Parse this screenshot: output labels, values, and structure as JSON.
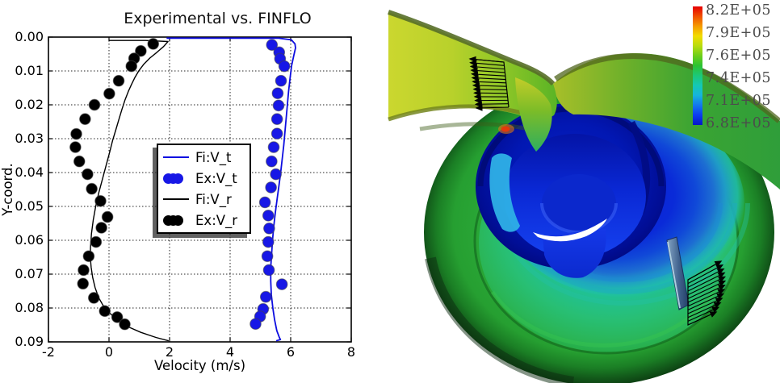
{
  "left_panel": {
    "title": "Experimental vs. FINFLO",
    "xlabel": "Velocity (m/s)",
    "ylabel": "Y-coord.",
    "x_tick_labels": [
      "-2",
      "0",
      "2",
      "4",
      "6",
      "8"
    ],
    "y_tick_labels": [
      "0.00",
      "0.01",
      "0.02",
      "0.03",
      "0.04",
      "0.05",
      "0.06",
      "0.07",
      "0.08",
      "0.09"
    ],
    "legend": {
      "entries": [
        {
          "label": "Fi:V_t",
          "marker": "line",
          "color": "#0d0de0"
        },
        {
          "label": "Ex:V_t",
          "marker": "dots",
          "color": "#1717e6"
        },
        {
          "label": "Fi:V_r",
          "marker": "line",
          "color": "#000000"
        },
        {
          "label": "Ex:V_r",
          "marker": "dots",
          "color": "#000000"
        }
      ]
    }
  },
  "chart_data": {
    "type": "line",
    "title": "Experimental vs. FINFLO",
    "xlabel": "Velocity (m/s)",
    "ylabel": "Y-coord.",
    "xlim": [
      -2,
      8
    ],
    "ylim": [
      0,
      0.09
    ],
    "y_axis_inverted": true,
    "grid": true,
    "legend_position": "center",
    "x_ticks": [
      -2,
      0,
      2,
      4,
      6,
      8
    ],
    "y_ticks": [
      0,
      0.01,
      0.02,
      0.03,
      0.04,
      0.05,
      0.06,
      0.07,
      0.08,
      0.09
    ],
    "series": [
      {
        "name": "Fi:V_t",
        "mode": "line",
        "color": "#0d0de0",
        "width": 1.8,
        "points": [
          [
            1.9,
            0.0003
          ],
          [
            5.6,
            0.0003
          ],
          [
            6.02,
            0.0008
          ],
          [
            6.14,
            0.002
          ],
          [
            6.16,
            0.0032
          ],
          [
            6.1,
            0.0055
          ],
          [
            6.03,
            0.0085
          ],
          [
            5.98,
            0.012
          ],
          [
            5.93,
            0.016
          ],
          [
            5.89,
            0.02
          ],
          [
            5.85,
            0.024
          ],
          [
            5.81,
            0.028
          ],
          [
            5.77,
            0.032
          ],
          [
            5.72,
            0.036
          ],
          [
            5.67,
            0.04
          ],
          [
            5.61,
            0.044
          ],
          [
            5.55,
            0.048
          ],
          [
            5.49,
            0.052
          ],
          [
            5.44,
            0.056
          ],
          [
            5.4,
            0.06
          ],
          [
            5.37,
            0.064
          ],
          [
            5.34,
            0.068
          ],
          [
            5.34,
            0.072
          ],
          [
            5.36,
            0.076
          ],
          [
            5.41,
            0.08
          ],
          [
            5.47,
            0.0835
          ],
          [
            5.54,
            0.0867
          ],
          [
            5.62,
            0.0886
          ],
          [
            5.66,
            0.0893
          ],
          [
            5.52,
            0.0897
          ]
        ]
      },
      {
        "name": "Ex:V_t",
        "mode": "scatter",
        "color": "#1717e6",
        "radius": 6.8,
        "points": [
          [
            5.38,
            0.0023
          ],
          [
            5.62,
            0.0045
          ],
          [
            5.65,
            0.0064
          ],
          [
            5.79,
            0.0086
          ],
          [
            5.68,
            0.0129
          ],
          [
            5.57,
            0.0166
          ],
          [
            5.6,
            0.0202
          ],
          [
            5.55,
            0.0242
          ],
          [
            5.55,
            0.0285
          ],
          [
            5.44,
            0.0325
          ],
          [
            5.37,
            0.0367
          ],
          [
            5.51,
            0.0405
          ],
          [
            5.35,
            0.0444
          ],
          [
            5.15,
            0.0488
          ],
          [
            5.26,
            0.0527
          ],
          [
            5.29,
            0.0565
          ],
          [
            5.26,
            0.0605
          ],
          [
            5.23,
            0.0647
          ],
          [
            5.28,
            0.0688
          ],
          [
            5.71,
            0.073
          ],
          [
            5.18,
            0.0767
          ],
          [
            5.09,
            0.0803
          ],
          [
            4.99,
            0.0825
          ],
          [
            4.84,
            0.0847
          ]
        ]
      },
      {
        "name": "Fi:V_r",
        "mode": "line",
        "color": "#000000",
        "width": 1.4,
        "points": [
          [
            0.0,
            0.001
          ],
          [
            1.2,
            0.001
          ],
          [
            1.95,
            0.0013
          ],
          [
            1.8,
            0.0028
          ],
          [
            1.58,
            0.0045
          ],
          [
            1.35,
            0.0062
          ],
          [
            1.15,
            0.008
          ],
          [
            0.98,
            0.01
          ],
          [
            0.85,
            0.012
          ],
          [
            0.74,
            0.014
          ],
          [
            0.64,
            0.016
          ],
          [
            0.53,
            0.0185
          ],
          [
            0.42,
            0.0215
          ],
          [
            0.32,
            0.0245
          ],
          [
            0.22,
            0.0275
          ],
          [
            0.12,
            0.0305
          ],
          [
            0.02,
            0.034
          ],
          [
            -0.1,
            0.038
          ],
          [
            -0.22,
            0.042
          ],
          [
            -0.34,
            0.046
          ],
          [
            -0.44,
            0.05
          ],
          [
            -0.52,
            0.054
          ],
          [
            -0.58,
            0.058
          ],
          [
            -0.61,
            0.062
          ],
          [
            -0.62,
            0.065
          ],
          [
            -0.59,
            0.068
          ],
          [
            -0.54,
            0.071
          ],
          [
            -0.46,
            0.074
          ],
          [
            -0.34,
            0.077
          ],
          [
            -0.18,
            0.0795
          ],
          [
            0.02,
            0.0815
          ],
          [
            0.28,
            0.0835
          ],
          [
            0.62,
            0.0855
          ],
          [
            1.05,
            0.0872
          ],
          [
            1.55,
            0.0887
          ],
          [
            1.97,
            0.0897
          ]
        ]
      },
      {
        "name": "Ex:V_r",
        "mode": "scatter",
        "color": "#000000",
        "radius": 6.8,
        "points": [
          [
            1.46,
            0.002
          ],
          [
            1.05,
            0.0041
          ],
          [
            0.83,
            0.0063
          ],
          [
            0.74,
            0.0086
          ],
          [
            0.32,
            0.0129
          ],
          [
            0.01,
            0.0167
          ],
          [
            -0.48,
            0.02
          ],
          [
            -0.79,
            0.0242
          ],
          [
            -1.08,
            0.0286
          ],
          [
            -1.11,
            0.0325
          ],
          [
            -0.98,
            0.0367
          ],
          [
            -0.71,
            0.0405
          ],
          [
            -0.57,
            0.0448
          ],
          [
            -0.28,
            0.0484
          ],
          [
            -0.05,
            0.0531
          ],
          [
            -0.25,
            0.0563
          ],
          [
            -0.43,
            0.0605
          ],
          [
            -0.67,
            0.0647
          ],
          [
            -0.84,
            0.0688
          ],
          [
            -0.86,
            0.0728
          ],
          [
            -0.5,
            0.077
          ],
          [
            -0.14,
            0.0809
          ],
          [
            0.27,
            0.0827
          ],
          [
            0.52,
            0.0848
          ]
        ]
      }
    ]
  },
  "right_panel": {
    "colorbar": {
      "tick_labels": [
        "8.2E+05",
        "7.9E+05",
        "7.6E+05",
        "7.4E+05",
        "7.1E+05",
        "6.8E+05"
      ],
      "label_color": "#4c4c4c",
      "colors_top_to_bottom": [
        "#e60000",
        "#f05000",
        "#f59b00",
        "#f2dc00",
        "#b8dc0e",
        "#6cce1a",
        "#2cc232",
        "#1cc878",
        "#14c8b4",
        "#16b4dc",
        "#1478ec",
        "#0c3cf0",
        "#0516c8"
      ]
    },
    "key_colors": {
      "volute_green": "#2aa838",
      "floor_teal": "#1fc49c",
      "deep_blue": "#0a2ad8",
      "scroll_navy": "#010e96",
      "inlet_yellow": "#cbd72f",
      "vector_black": "#000000",
      "highlight_white": "#ffffff"
    },
    "features": [
      "inlet-duct",
      "volute-casing",
      "impeller-scroll",
      "velocity-vector-profiles",
      "guide-vane"
    ]
  }
}
